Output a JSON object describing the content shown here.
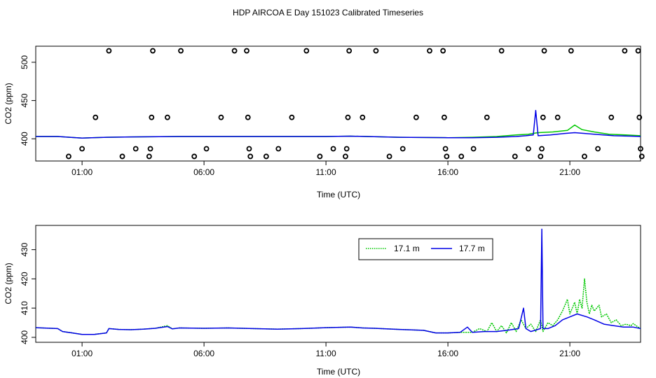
{
  "title": "HDP AIRCOA E  Day 151023  Calibrated Timeseries",
  "colors": {
    "green": "#00c800",
    "blue": "#0000e6",
    "axis": "#000000"
  },
  "chart_data": [
    {
      "type": "scatter",
      "title": "HDP AIRCOA E  Day 151023  Calibrated Timeseries",
      "xlabel": "Time (UTC)",
      "ylabel": "CO2 (ppm)",
      "xlim": [
        -0.9,
        23.9
      ],
      "ylim": [
        371,
        521
      ],
      "x_ticks": [
        1,
        6,
        11,
        16,
        21
      ],
      "x_tick_labels": [
        "01:00",
        "06:00",
        "11:00",
        "16:00",
        "21:00"
      ],
      "y_ticks": [
        400,
        450,
        500
      ],
      "y_tick_labels": [
        "400",
        "450",
        "500"
      ],
      "grid": false,
      "legend": "none",
      "series": [
        {
          "marker": "open-circle",
          "color": "#000000",
          "points": [
            [
              0.45,
              377
            ],
            [
              1.0,
              387
            ],
            [
              1.55,
              428
            ],
            [
              2.1,
              515
            ],
            [
              2.65,
              377
            ],
            [
              3.2,
              387
            ],
            [
              3.75,
              377
            ],
            [
              3.8,
              387
            ],
            [
              3.85,
              428
            ],
            [
              3.9,
              515
            ],
            [
              4.5,
              428
            ],
            [
              5.05,
              515
            ],
            [
              5.6,
              377
            ],
            [
              6.1,
              387
            ],
            [
              6.7,
              428
            ],
            [
              7.25,
              515
            ],
            [
              7.75,
              515
            ],
            [
              7.8,
              428
            ],
            [
              7.85,
              387
            ],
            [
              7.9,
              377
            ],
            [
              8.55,
              377
            ],
            [
              9.05,
              387
            ],
            [
              9.6,
              428
            ],
            [
              10.2,
              515
            ],
            [
              10.75,
              377
            ],
            [
              11.3,
              387
            ],
            [
              11.8,
              377
            ],
            [
              11.85,
              387
            ],
            [
              11.9,
              428
            ],
            [
              11.95,
              515
            ],
            [
              12.5,
              428
            ],
            [
              13.05,
              515
            ],
            [
              13.6,
              377
            ],
            [
              14.15,
              387
            ],
            [
              14.7,
              428
            ],
            [
              15.25,
              515
            ],
            [
              15.8,
              515
            ],
            [
              15.85,
              428
            ],
            [
              15.9,
              387
            ],
            [
              15.95,
              377
            ],
            [
              16.55,
              377
            ],
            [
              17.05,
              387
            ],
            [
              17.6,
              428
            ],
            [
              18.2,
              515
            ],
            [
              18.75,
              377
            ],
            [
              19.3,
              387
            ],
            [
              19.8,
              377
            ],
            [
              19.85,
              387
            ],
            [
              19.9,
              428
            ],
            [
              19.95,
              515
            ],
            [
              20.5,
              428
            ],
            [
              21.05,
              515
            ],
            [
              21.6,
              377
            ],
            [
              22.15,
              387
            ],
            [
              22.7,
              428
            ],
            [
              23.25,
              515
            ],
            [
              23.8,
              515
            ],
            [
              23.85,
              428
            ],
            [
              23.9,
              387
            ],
            [
              23.95,
              377
            ]
          ]
        },
        {
          "marker": "line",
          "color": "#00c800",
          "points": [
            [
              -1,
              403
            ],
            [
              0,
              403
            ],
            [
              1,
              401
            ],
            [
              2,
              402
            ],
            [
              3,
              402.5
            ],
            [
              5,
              403
            ],
            [
              8,
              403
            ],
            [
              11,
              403
            ],
            [
              12,
              403.5
            ],
            [
              14,
              402
            ],
            [
              16,
              401.5
            ],
            [
              17,
              402
            ],
            [
              18,
              403
            ],
            [
              18.8,
              405
            ],
            [
              19.3,
              406
            ],
            [
              19.7,
              408
            ],
            [
              20.3,
              409
            ],
            [
              20.9,
              411
            ],
            [
              21.2,
              418
            ],
            [
              21.5,
              412
            ],
            [
              22,
              409
            ],
            [
              22.6,
              406
            ],
            [
              23.3,
              405
            ],
            [
              24,
              404
            ]
          ]
        },
        {
          "marker": "line",
          "color": "#0000e6",
          "points": [
            [
              -1,
              403
            ],
            [
              0,
              403
            ],
            [
              1,
              401
            ],
            [
              2,
              402
            ],
            [
              3,
              402.5
            ],
            [
              5,
              403
            ],
            [
              8,
              403
            ],
            [
              11,
              403
            ],
            [
              12,
              403.5
            ],
            [
              14,
              402
            ],
            [
              16,
              401.5
            ],
            [
              17,
              401.5
            ],
            [
              18,
              402
            ],
            [
              18.8,
              403
            ],
            [
              19.2,
              404
            ],
            [
              19.5,
              405
            ],
            [
              19.6,
              437
            ],
            [
              19.7,
              404
            ],
            [
              20.2,
              405
            ],
            [
              20.8,
              407
            ],
            [
              21.2,
              408
            ],
            [
              22,
              406
            ],
            [
              22.8,
              404
            ],
            [
              23.5,
              403.5
            ],
            [
              24,
              403
            ]
          ]
        }
      ]
    },
    {
      "type": "line",
      "xlabel": "Time (UTC)",
      "ylabel": "CO2 (ppm)",
      "xlim": [
        -0.9,
        23.9
      ],
      "ylim": [
        398.3,
        438.3
      ],
      "x_ticks": [
        1,
        6,
        11,
        16,
        21
      ],
      "x_tick_labels": [
        "01:00",
        "06:00",
        "11:00",
        "16:00",
        "21:00"
      ],
      "y_ticks": [
        400,
        410,
        420,
        430
      ],
      "y_tick_labels": [
        "400",
        "410",
        "420",
        "430"
      ],
      "grid": false,
      "legend": "top-right",
      "series": [
        {
          "name": "17.1 m",
          "color": "#00c800",
          "line": "dotted",
          "points": [
            [
              -1,
              403.3
            ],
            [
              0,
              403
            ],
            [
              0.2,
              402
            ],
            [
              0.6,
              401.5
            ],
            [
              1,
              401
            ],
            [
              1.5,
              401
            ],
            [
              2,
              401.5
            ],
            [
              2.1,
              403
            ],
            [
              2.5,
              402.7
            ],
            [
              3,
              402.6
            ],
            [
              3.5,
              402.8
            ],
            [
              4,
              403.1
            ],
            [
              4.5,
              404
            ],
            [
              4.7,
              402.9
            ],
            [
              5,
              403.2
            ],
            [
              6,
              403.1
            ],
            [
              7,
              403.2
            ],
            [
              8,
              403
            ],
            [
              9,
              402.8
            ],
            [
              10,
              403
            ],
            [
              11,
              403.3
            ],
            [
              12,
              403.5
            ],
            [
              12.5,
              403.2
            ],
            [
              13,
              403.1
            ],
            [
              14,
              402.7
            ],
            [
              15,
              402.4
            ],
            [
              15.5,
              401.5
            ],
            [
              16,
              401.5
            ],
            [
              16.5,
              401.7
            ],
            [
              17,
              401.7
            ],
            [
              17.3,
              403
            ],
            [
              17.6,
              402
            ],
            [
              17.8,
              405
            ],
            [
              18,
              402
            ],
            [
              18.2,
              404
            ],
            [
              18.4,
              401.5
            ],
            [
              18.6,
              405
            ],
            [
              18.8,
              402
            ],
            [
              19,
              406
            ],
            [
              19.2,
              403
            ],
            [
              19.4,
              404.5
            ],
            [
              19.6,
              402
            ],
            [
              19.8,
              406
            ],
            [
              19.9,
              402
            ],
            [
              20.1,
              405
            ],
            [
              20.3,
              404
            ],
            [
              20.5,
              406
            ],
            [
              20.7,
              409
            ],
            [
              20.9,
              413
            ],
            [
              21.0,
              408
            ],
            [
              21.2,
              412
            ],
            [
              21.3,
              408
            ],
            [
              21.4,
              413
            ],
            [
              21.5,
              410
            ],
            [
              21.6,
              420
            ],
            [
              21.7,
              412
            ],
            [
              21.8,
              408
            ],
            [
              21.9,
              411
            ],
            [
              22,
              409
            ],
            [
              22.2,
              411
            ],
            [
              22.3,
              407
            ],
            [
              22.5,
              408
            ],
            [
              22.7,
              405
            ],
            [
              22.9,
              406
            ],
            [
              23.1,
              404
            ],
            [
              23.3,
              404.5
            ],
            [
              23.5,
              404
            ],
            [
              23.6,
              404.7
            ],
            [
              23.8,
              403.5
            ],
            [
              24,
              403
            ]
          ]
        },
        {
          "name": "17.7 m",
          "color": "#0000e6",
          "line": "solid",
          "points": [
            [
              -1,
              403.3
            ],
            [
              0,
              403
            ],
            [
              0.2,
              402
            ],
            [
              0.6,
              401.5
            ],
            [
              1,
              401
            ],
            [
              1.5,
              401
            ],
            [
              2,
              401.5
            ],
            [
              2.1,
              403
            ],
            [
              2.5,
              402.7
            ],
            [
              3,
              402.6
            ],
            [
              3.5,
              402.8
            ],
            [
              4,
              403.1
            ],
            [
              4.5,
              403.7
            ],
            [
              4.7,
              402.9
            ],
            [
              5,
              403.2
            ],
            [
              6,
              403.1
            ],
            [
              7,
              403.2
            ],
            [
              8,
              403
            ],
            [
              9,
              402.8
            ],
            [
              10,
              403
            ],
            [
              11,
              403.3
            ],
            [
              12,
              403.5
            ],
            [
              12.5,
              403.2
            ],
            [
              13,
              403.1
            ],
            [
              14,
              402.7
            ],
            [
              15,
              402.4
            ],
            [
              15.5,
              401.5
            ],
            [
              16,
              401.5
            ],
            [
              16.5,
              401.7
            ],
            [
              16.8,
              403.5
            ],
            [
              17,
              401.7
            ],
            [
              17.5,
              402
            ],
            [
              18,
              402
            ],
            [
              18.5,
              402.5
            ],
            [
              18.9,
              403
            ],
            [
              19.1,
              410
            ],
            [
              19.2,
              403
            ],
            [
              19.4,
              402
            ],
            [
              19.6,
              402.5
            ],
            [
              19.8,
              403
            ],
            [
              19.85,
              437
            ],
            [
              19.9,
              403
            ],
            [
              20.1,
              403
            ],
            [
              20.4,
              404
            ],
            [
              20.7,
              406
            ],
            [
              21,
              407
            ],
            [
              21.3,
              408
            ],
            [
              21.7,
              407
            ],
            [
              22,
              406
            ],
            [
              22.4,
              404.5
            ],
            [
              22.8,
              404
            ],
            [
              23.2,
              403.5
            ],
            [
              23.6,
              403.5
            ],
            [
              24,
              403
            ]
          ]
        }
      ]
    }
  ]
}
